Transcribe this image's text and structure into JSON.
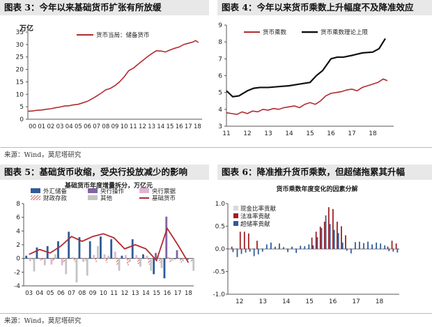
{
  "captions": {
    "fig3": "图表 3：今年以来基础货币扩张有所放缓",
    "fig4": "图表 4：今年以来货币乘数上升幅度不及降准效应",
    "fig5": "图表 5：基础货币收缩，受央行投放减少的影响",
    "fig6": "图表 6：降准推升货币乘数，但超储拖累其升幅"
  },
  "sources": {
    "top": "来源：Wind，莫尼塔研究",
    "bottom": "来源：Wind，莫尼塔研究"
  },
  "colors": {
    "red": "#b22a2f",
    "dark_red": "#a01e23",
    "black": "#111111",
    "blue": "#2e5c9a",
    "purple": "#8064a2",
    "pink": "#e0b4d4",
    "gray": "#c4c4c4",
    "light_gray": "#d9d9d9",
    "hatch": "#d2303a"
  },
  "chart_data": [
    {
      "id": "fig3",
      "type": "line",
      "unit_label": "万亿",
      "x_ticks": [
        "00",
        "01",
        "02",
        "03",
        "04",
        "05",
        "06",
        "07",
        "08",
        "09",
        "10",
        "11",
        "12",
        "13",
        "14",
        "15",
        "16",
        "17",
        "18"
      ],
      "y_ticks": [
        0,
        5,
        10,
        15,
        20,
        25,
        30,
        35
      ],
      "ylim": [
        0,
        35
      ],
      "xlim": [
        2000,
        2019
      ],
      "grid": false,
      "legend": "top",
      "series": [
        {
          "name": "货币当局：储备货币",
          "color": "#b22a2f",
          "x": [
            2000,
            2000.5,
            2001,
            2001.5,
            2002,
            2002.5,
            2003,
            2003.5,
            2004,
            2004.5,
            2005,
            2005.5,
            2006,
            2006.5,
            2007,
            2007.5,
            2008,
            2008.5,
            2009,
            2009.5,
            2010,
            2010.5,
            2011,
            2011.5,
            2012,
            2012.5,
            2013,
            2013.5,
            2014,
            2014.5,
            2015,
            2015.5,
            2016,
            2016.5,
            2017,
            2017.5,
            2018,
            2018.3,
            2018.6
          ],
          "y": [
            3.2,
            3.3,
            3.6,
            3.7,
            4.0,
            4.2,
            4.6,
            4.9,
            5.3,
            5.4,
            5.8,
            6.0,
            6.6,
            7.2,
            8.2,
            9.3,
            10.5,
            11.8,
            12.4,
            13.5,
            15.0,
            17.0,
            19.5,
            20.5,
            22.0,
            23.5,
            25.0,
            26.3,
            27.5,
            27.4,
            27.0,
            27.8,
            28.5,
            29.0,
            30.0,
            30.5,
            31.0,
            31.6,
            30.8
          ]
        }
      ]
    },
    {
      "id": "fig4",
      "type": "line",
      "x_ticks": [
        "11",
        "12",
        "13",
        "14",
        "15",
        "16",
        "17",
        "18"
      ],
      "y_ticks": [
        3,
        4,
        5,
        6,
        7,
        8,
        9
      ],
      "ylim": [
        3,
        9
      ],
      "xlim": [
        2011,
        2019
      ],
      "grid": false,
      "legend": "top",
      "series": [
        {
          "name": "货币乘数",
          "color": "#b22a2f",
          "x": [
            2011,
            2011.25,
            2011.5,
            2011.75,
            2012,
            2012.25,
            2012.5,
            2012.75,
            2013,
            2013.25,
            2013.5,
            2013.75,
            2014,
            2014.25,
            2014.5,
            2014.75,
            2015,
            2015.25,
            2015.5,
            2015.75,
            2016,
            2016.25,
            2016.5,
            2016.75,
            2017,
            2017.25,
            2017.5,
            2017.75,
            2018,
            2018.25,
            2018.5,
            2018.7
          ],
          "y": [
            3.8,
            3.75,
            3.7,
            3.85,
            3.75,
            3.9,
            3.85,
            4.0,
            3.95,
            4.05,
            4.0,
            4.1,
            4.15,
            4.2,
            4.1,
            4.3,
            4.4,
            4.3,
            4.5,
            4.8,
            4.95,
            5.0,
            5.05,
            5.15,
            5.2,
            5.1,
            5.3,
            5.4,
            5.5,
            5.6,
            5.8,
            5.7
          ]
        },
        {
          "name": "货币乘数理论上限",
          "color": "#111111",
          "x": [
            2011,
            2011.3,
            2011.6,
            2012,
            2012.3,
            2012.6,
            2013,
            2013.5,
            2014,
            2014.5,
            2015,
            2015.3,
            2015.6,
            2016,
            2016.3,
            2016.6,
            2017,
            2017.5,
            2018,
            2018.3,
            2018.6
          ],
          "y": [
            5.1,
            4.75,
            4.8,
            5.1,
            5.25,
            5.3,
            5.3,
            5.35,
            5.4,
            5.5,
            5.6,
            6.0,
            6.3,
            7.0,
            7.1,
            7.1,
            7.2,
            7.35,
            7.4,
            7.6,
            8.2
          ]
        }
      ]
    },
    {
      "id": "fig5",
      "type": "bar",
      "title": "基础货币年度增量拆分，万亿元",
      "categories": [
        "03",
        "04",
        "05",
        "06",
        "07",
        "08",
        "09",
        "10",
        "11",
        "12",
        "13",
        "14",
        "15",
        "16",
        "17",
        "18"
      ],
      "y_ticks": [
        -4,
        -2,
        0,
        2,
        4,
        6,
        8
      ],
      "ylim": [
        -4,
        8
      ],
      "grid": false,
      "legend": "top",
      "series": [
        {
          "name": "外汇储备",
          "color": "#2e5c9a",
          "style": "solid",
          "values": [
            0.4,
            1.6,
            1.8,
            2.5,
            3.9,
            3.1,
            2.5,
            3.2,
            2.8,
            0.4,
            2.8,
            0.6,
            -2.3,
            -2.9,
            -0.1,
            0
          ]
        },
        {
          "name": "央行操作",
          "color": "#8064a2",
          "style": "solid",
          "values": [
            0,
            0,
            0,
            0,
            0,
            0,
            0,
            0,
            0,
            0,
            0,
            0,
            0.8,
            6.1,
            1.2,
            -0.2
          ]
        },
        {
          "name": "央行票据",
          "color": "#e0b4d4",
          "style": "solid",
          "values": [
            -0.4,
            -0.3,
            -0.9,
            -1.0,
            0.2,
            -0.5,
            0.5,
            0.6,
            1.0,
            0.5,
            0.5,
            0.4,
            0.4,
            0.2,
            0,
            0
          ]
        },
        {
          "name": "财政存款",
          "color": "#d2303a",
          "style": "hatched",
          "values": [
            -0.2,
            -0.2,
            -0.3,
            -0.5,
            -0.5,
            -0.3,
            -0.5,
            -0.6,
            -0.9,
            -1.0,
            -0.8,
            -0.9,
            -0.6,
            -0.5,
            -0.6,
            -0.4
          ]
        },
        {
          "name": "其他",
          "color": "#c4c4c4",
          "style": "solid",
          "values": [
            -1.9,
            -1.0,
            0.6,
            -2.3,
            -3.5,
            -2.5,
            1.8,
            0.4,
            -1.8,
            -0.5,
            -1.2,
            -1.8,
            -1.4,
            -0.3,
            -0.4,
            -1.8
          ]
        },
        {
          "name": "基础货币",
          "color": "#b22a2f",
          "style": "line",
          "values": [
            0.6,
            1.3,
            0.8,
            1.8,
            3.2,
            2.5,
            3.2,
            3.6,
            3.0,
            1.4,
            2.0,
            1.4,
            -0.3,
            4.4,
            2.0,
            -0.6
          ]
        }
      ]
    },
    {
      "id": "fig6",
      "type": "bar",
      "title": "货币乘数年度变化的因素分解",
      "x_ticks": [
        "12",
        "13",
        "14",
        "15",
        "16",
        "17",
        "18"
      ],
      "y_ticks": [
        -1.0,
        -0.5,
        0.0,
        0.5,
        1.0
      ],
      "ylim": [
        -1,
        1
      ],
      "xlim": [
        2011.5,
        2018.85
      ],
      "grid": false,
      "legend": "top-left",
      "series": [
        {
          "name": "现金比率贡献",
          "color": "#d9d9d9",
          "values": [
            0.01,
            0.01,
            0.01,
            0.01,
            0.01,
            0.01,
            0.01,
            0.01,
            0.01,
            0.01,
            0.01,
            0.01,
            0.01,
            0.01,
            0.01,
            0.01,
            0.01,
            0.01,
            0.01,
            0.01,
            0.01,
            0.01,
            0.01,
            0.01,
            0.01,
            0.01,
            0.02,
            0.02,
            0.02,
            0.02,
            0.02,
            0.02,
            0.01,
            0.01,
            0.01,
            0.01,
            0.01,
            0.01,
            0.01,
            0.01
          ]
        },
        {
          "name": "法准率贡献",
          "color": "#a01e23",
          "values": [
            0.05,
            0,
            0.38,
            0.38,
            0.34,
            0,
            0.18,
            0,
            0,
            0,
            0,
            0,
            0,
            0,
            0,
            0,
            0,
            0,
            0,
            0.25,
            0.38,
            0.49,
            0.6,
            0.92,
            0.88,
            0.6,
            0.5,
            0.3,
            0,
            0,
            0,
            0,
            0,
            0,
            0,
            0,
            0,
            0.05,
            0.18,
            0.12
          ]
        },
        {
          "name": "超储率贡献",
          "color": "#2e5c9a",
          "values": [
            -0.07,
            -0.18,
            -0.11,
            -0.08,
            -0.06,
            -0.16,
            -0.12,
            -0.06,
            0.1,
            0.14,
            0.05,
            0.12,
            0.04,
            -0.07,
            0.05,
            -0.09,
            0.07,
            0.06,
            0.1,
            0.08,
            0.26,
            0.46,
            0.74,
            0.55,
            0.42,
            0.35,
            0.14,
            -0.04,
            -0.1,
            0.15,
            0.16,
            0.13,
            0.16,
            0.1,
            0.14,
            0.12,
            0.08,
            -0.05,
            -0.06,
            -0.08
          ]
        }
      ]
    }
  ]
}
